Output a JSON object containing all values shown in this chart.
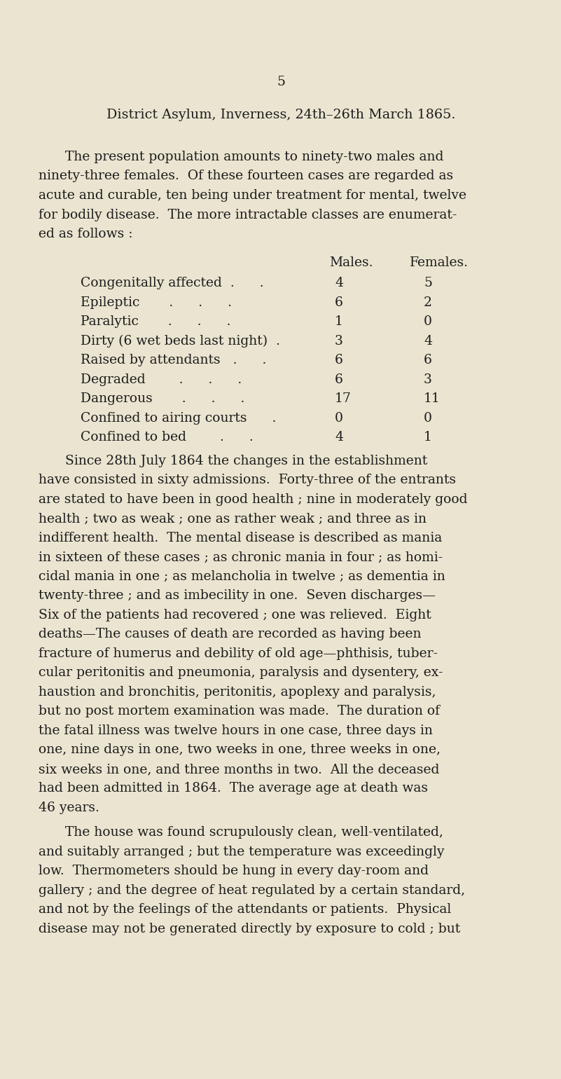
{
  "background_color": "#EAE4D0",
  "page_number": "5",
  "title": "District Asylum, Inverness, 24th–26th March 1865.",
  "para1_lines": [
    [
      "The present population amounts to ninety-two males and",
      true
    ],
    [
      "ninety-three females.  Of these fourteen cases are regarded as",
      false
    ],
    [
      "acute and curable, ten being under treatment for mental, twelve",
      false
    ],
    [
      "for bodily disease.  The more intractable classes are enumerat-",
      false
    ],
    [
      "ed as follows :",
      false
    ]
  ],
  "table_header_males": "Males.",
  "table_header_females": "Females.",
  "table_rows": [
    [
      "Congenitally affected  .      .",
      "4",
      "5"
    ],
    [
      "Epileptic       .      .      .",
      "6",
      "2"
    ],
    [
      "Paralytic       .      .      .",
      "1",
      "0"
    ],
    [
      "Dirty (6 wet beds last night)  .",
      "3",
      "4"
    ],
    [
      "Raised by attendants   .      .",
      "6",
      "6"
    ],
    [
      "Degraded        .      .      .",
      "6",
      "3"
    ],
    [
      "Dangerous       .      .      .",
      "17",
      "11"
    ],
    [
      "Confined to airing courts      .",
      "0",
      "0"
    ],
    [
      "Confined to bed        .      .",
      "4",
      "1"
    ]
  ],
  "body_para1_lines": [
    [
      "Since 28th July 1864 the changes in the establishment",
      true
    ],
    [
      "have consisted in sixty admissions.  Forty-three of the entrants",
      false
    ],
    [
      "are stated to have been in good health ; nine in moderately good",
      false
    ],
    [
      "health ; two as weak ; one as rather weak ; and three as in",
      false
    ],
    [
      "indifferent health.  The mental disease is described as mania",
      false
    ],
    [
      "in sixteen of these cases ; as chronic mania in four ; as homi-",
      false
    ],
    [
      "cidal mania in one ; as melancholia in twelve ; as dementia in",
      false
    ],
    [
      "twenty-three ; and as imbecility in one.  Seven discharges—",
      false
    ],
    [
      "Six of the patients had recovered ; one was relieved.  Eight",
      false
    ],
    [
      "deaths—The causes of death are recorded as having been",
      false
    ],
    [
      "fracture of humerus and debility of old age—phthisis, tuber-",
      false
    ],
    [
      "cular peritonitis and pneumonia, paralysis and dysentery, ex-",
      false
    ],
    [
      "haustion and bronchitis, peritonitis, apoplexy and paralysis,",
      false
    ],
    [
      "but no post mortem examination was made.  The duration of",
      false
    ],
    [
      "the fatal illness was twelve hours in one case, three days in",
      false
    ],
    [
      "one, nine days in one, two weeks in one, three weeks in one,",
      false
    ],
    [
      "six weeks in one, and three months in two.  All the deceased",
      false
    ],
    [
      "had been admitted in 1864.  The average age at death was",
      false
    ],
    [
      "46 years.",
      false
    ]
  ],
  "body_para2_lines": [
    [
      "The house was found scrupulously clean, well-ventilated,",
      true
    ],
    [
      "and suitably arranged ; but the temperature was exceedingly",
      false
    ],
    [
      "low.  Thermometers should be hung in every day-room and",
      false
    ],
    [
      "gallery ; and the degree of heat regulated by a certain standard,",
      false
    ],
    [
      "and not by the feelings of the attendants or patients.  Physical",
      false
    ],
    [
      "disease may not be generated directly by exposure to cold ; but",
      false
    ]
  ]
}
